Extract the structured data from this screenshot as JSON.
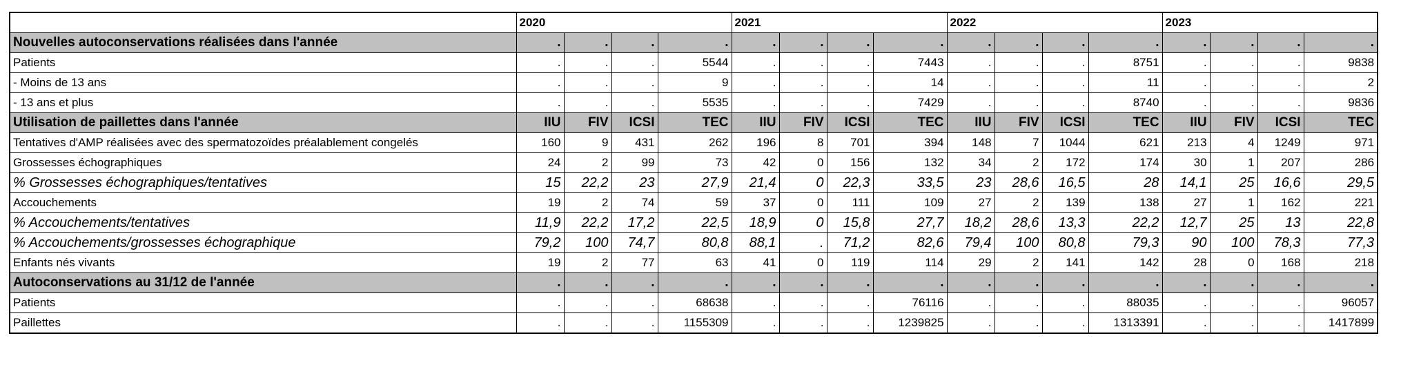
{
  "table": {
    "years": [
      "2020",
      "2021",
      "2022",
      "2023"
    ],
    "rows": [
      {
        "kind": "section",
        "label": "Nouvelles autoconservations réalisées dans l'année",
        "cells": [
          ".",
          ".",
          ".",
          ".",
          ".",
          ".",
          ".",
          ".",
          ".",
          ".",
          ".",
          ".",
          ".",
          ".",
          ".",
          "."
        ]
      },
      {
        "kind": "normal",
        "label": "Patients",
        "cells": [
          ".",
          ".",
          ".",
          "5544",
          ".",
          ".",
          ".",
          "7443",
          ".",
          ".",
          ".",
          "8751",
          ".",
          ".",
          ".",
          "9838"
        ]
      },
      {
        "kind": "normal",
        "label": "- Moins de 13 ans",
        "cells": [
          ".",
          ".",
          ".",
          "9",
          ".",
          ".",
          ".",
          "14",
          ".",
          ".",
          ".",
          "11",
          ".",
          ".",
          ".",
          "2"
        ]
      },
      {
        "kind": "normal",
        "label": "- 13 ans et plus",
        "cells": [
          ".",
          ".",
          ".",
          "5535",
          ".",
          ".",
          ".",
          "7429",
          ".",
          ".",
          ".",
          "8740",
          ".",
          ".",
          ".",
          "9836"
        ]
      },
      {
        "kind": "section",
        "label": "Utilisation de paillettes dans l'année",
        "cells": [
          "IIU",
          "FIV",
          "ICSI",
          "TEC",
          "IIU",
          "FIV",
          "ICSI",
          "TEC",
          "IIU",
          "FIV",
          "ICSI",
          "TEC",
          "IIU",
          "FIV",
          "ICSI",
          "TEC"
        ]
      },
      {
        "kind": "normal",
        "label": "Tentatives d'AMP réalisées avec des spermatozoïdes préalablement congelés",
        "cells": [
          "160",
          "9",
          "431",
          "262",
          "196",
          "8",
          "701",
          "394",
          "148",
          "7",
          "1044",
          "621",
          "213",
          "4",
          "1249",
          "971"
        ]
      },
      {
        "kind": "normal",
        "label": "Grossesses échographiques",
        "cells": [
          "24",
          "2",
          "99",
          "73",
          "42",
          "0",
          "156",
          "132",
          "34",
          "2",
          "172",
          "174",
          "30",
          "1",
          "207",
          "286"
        ]
      },
      {
        "kind": "italic",
        "label": "% Grossesses échographiques/tentatives",
        "cells": [
          "15",
          "22,2",
          "23",
          "27,9",
          "21,4",
          "0",
          "22,3",
          "33,5",
          "23",
          "28,6",
          "16,5",
          "28",
          "14,1",
          "25",
          "16,6",
          "29,5"
        ]
      },
      {
        "kind": "normal",
        "label": "Accouchements",
        "cells": [
          "19",
          "2",
          "74",
          "59",
          "37",
          "0",
          "111",
          "109",
          "27",
          "2",
          "139",
          "138",
          "27",
          "1",
          "162",
          "221"
        ]
      },
      {
        "kind": "italic",
        "label": "% Accouchements/tentatives",
        "cells": [
          "11,9",
          "22,2",
          "17,2",
          "22,5",
          "18,9",
          "0",
          "15,8",
          "27,7",
          "18,2",
          "28,6",
          "13,3",
          "22,2",
          "12,7",
          "25",
          "13",
          "22,8"
        ]
      },
      {
        "kind": "italic",
        "label": "% Accouchements/grossesses échographique",
        "cells": [
          "79,2",
          "100",
          "74,7",
          "80,8",
          "88,1",
          ".",
          "71,2",
          "82,6",
          "79,4",
          "100",
          "80,8",
          "79,3",
          "90",
          "100",
          "78,3",
          "77,3"
        ]
      },
      {
        "kind": "normal",
        "label": "Enfants nés vivants",
        "cells": [
          "19",
          "2",
          "77",
          "63",
          "41",
          "0",
          "119",
          "114",
          "29",
          "2",
          "141",
          "142",
          "28",
          "0",
          "168",
          "218"
        ]
      },
      {
        "kind": "section",
        "label": "Autoconservations au 31/12 de l'année",
        "cells": [
          ".",
          ".",
          ".",
          ".",
          ".",
          ".",
          ".",
          ".",
          ".",
          ".",
          ".",
          ".",
          ".",
          ".",
          ".",
          "."
        ]
      },
      {
        "kind": "normal",
        "label": "Patients",
        "cells": [
          ".",
          ".",
          ".",
          "68638",
          ".",
          ".",
          ".",
          "76116",
          ".",
          ".",
          ".",
          "88035",
          ".",
          ".",
          ".",
          "96057"
        ]
      },
      {
        "kind": "normal",
        "label": "Paillettes",
        "cells": [
          ".",
          ".",
          ".",
          "1155309",
          ".",
          ".",
          ".",
          "1239825",
          ".",
          ".",
          ".",
          "1313391",
          ".",
          ".",
          ".",
          "1417899"
        ]
      }
    ]
  }
}
